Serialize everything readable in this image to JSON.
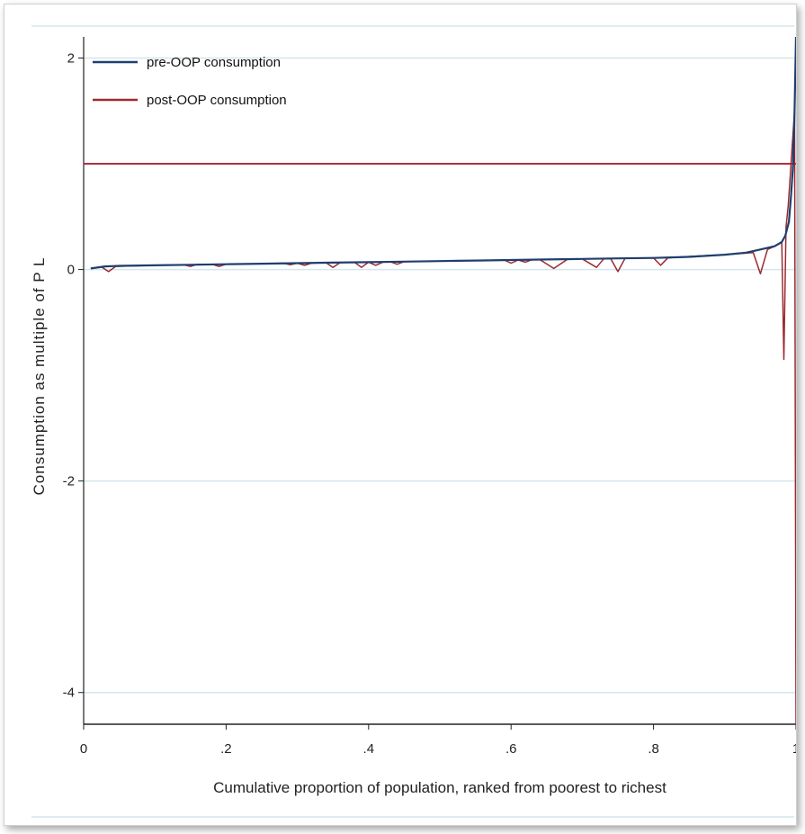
{
  "chart_data": {
    "type": "line",
    "title": "",
    "xlabel": "Cumulative proportion of population, ranked from poorest to richest",
    "ylabel": "Consumption as multiple of P L",
    "xlim": [
      0,
      1
    ],
    "ylim": [
      -4.3,
      2.2
    ],
    "x_ticks": [
      0,
      0.2,
      0.4,
      0.6,
      0.8,
      1
    ],
    "x_tick_labels": [
      "0",
      ".2",
      ".4",
      ".6",
      ".8",
      "1"
    ],
    "y_ticks": [
      2,
      0,
      -2,
      -4
    ],
    "y_tick_labels": [
      "2",
      "0",
      "-2",
      "-4"
    ],
    "grid": "horizontal",
    "legend_position": "top-left",
    "poverty_line": {
      "y": 1,
      "color": "#b0303f"
    },
    "series": [
      {
        "name": "pre-OOP consumption",
        "color": "#1f3f6e",
        "x": [
          0.01,
          0.03,
          0.05,
          0.1,
          0.15,
          0.2,
          0.25,
          0.3,
          0.35,
          0.4,
          0.45,
          0.5,
          0.55,
          0.6,
          0.65,
          0.7,
          0.75,
          0.8,
          0.85,
          0.9,
          0.93,
          0.95,
          0.97,
          0.98,
          0.985,
          0.99,
          0.993,
          0.996,
          0.998,
          1.0
        ],
        "y": [
          0.01,
          0.03,
          0.035,
          0.04,
          0.045,
          0.05,
          0.055,
          0.06,
          0.065,
          0.07,
          0.075,
          0.08,
          0.085,
          0.09,
          0.095,
          0.1,
          0.105,
          0.11,
          0.12,
          0.14,
          0.16,
          0.19,
          0.22,
          0.26,
          0.32,
          0.45,
          0.7,
          1.0,
          1.5,
          2.2
        ]
      },
      {
        "name": "post-OOP consumption",
        "color": "#9b2a30",
        "x": [
          0.01,
          0.025,
          0.035,
          0.045,
          0.1,
          0.14,
          0.15,
          0.16,
          0.18,
          0.19,
          0.2,
          0.25,
          0.28,
          0.29,
          0.3,
          0.31,
          0.32,
          0.34,
          0.35,
          0.36,
          0.38,
          0.39,
          0.4,
          0.41,
          0.42,
          0.43,
          0.44,
          0.45,
          0.5,
          0.55,
          0.59,
          0.6,
          0.61,
          0.62,
          0.63,
          0.64,
          0.66,
          0.68,
          0.7,
          0.72,
          0.73,
          0.74,
          0.75,
          0.76,
          0.8,
          0.81,
          0.82,
          0.84,
          0.9,
          0.94,
          0.95,
          0.96,
          0.97,
          0.98,
          0.983,
          0.986,
          0.989,
          0.992,
          0.995,
          0.998,
          1.0
        ],
        "y": [
          0.01,
          0.025,
          -0.02,
          0.03,
          0.04,
          0.045,
          0.03,
          0.05,
          0.05,
          0.03,
          0.05,
          0.055,
          0.06,
          0.045,
          0.06,
          0.04,
          0.06,
          0.065,
          0.02,
          0.065,
          0.07,
          0.02,
          0.07,
          0.04,
          0.07,
          0.075,
          0.05,
          0.075,
          0.08,
          0.085,
          0.09,
          0.06,
          0.09,
          0.07,
          0.095,
          0.095,
          0.01,
          0.1,
          0.1,
          0.02,
          0.1,
          0.1,
          -0.02,
          0.105,
          0.11,
          0.04,
          0.11,
          0.12,
          0.14,
          0.16,
          -0.04,
          0.19,
          0.22,
          0.26,
          -0.85,
          0.4,
          0.6,
          0.9,
          1.2,
          1.5,
          -4.3
        ]
      }
    ]
  }
}
